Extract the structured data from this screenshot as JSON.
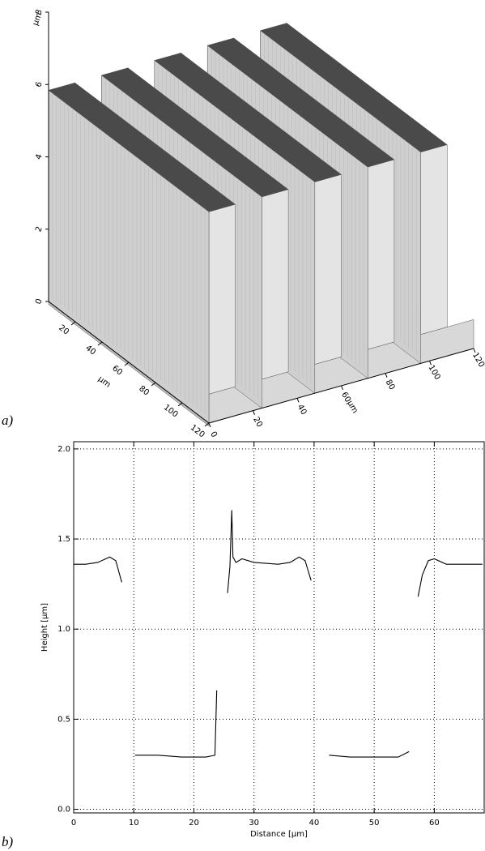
{
  "chart_data": [
    {
      "type": "surface3d",
      "panel_label": "a)",
      "zlabel": "μm",
      "xlabel": "μm",
      "ylabel": "μm",
      "zlim": [
        0,
        8
      ],
      "zticks": [
        0,
        2,
        4,
        6,
        8
      ],
      "ylim": [
        0,
        120
      ],
      "yticks": [
        20,
        40,
        60,
        80,
        100,
        120
      ],
      "xlim": [
        0,
        120
      ],
      "xticks": [
        0,
        20,
        40,
        60,
        80,
        100,
        120
      ]
    },
    {
      "type": "line",
      "panel_label": "b)",
      "xlabel": "Distance [μm]",
      "ylabel": "Height [μm]",
      "xlim": [
        0,
        68.3
      ],
      "ylim": [
        -0.02,
        2.04
      ],
      "xticks": [
        0,
        10,
        20,
        30,
        40,
        50,
        60
      ],
      "yticks": [
        {
          "value": 0,
          "label": "0.0"
        },
        {
          "value": 0.5,
          "label": "0.5"
        },
        {
          "value": 1,
          "label": "1.0"
        },
        {
          "value": 1.5,
          "label": "1.5"
        },
        {
          "value": 2,
          "label": "2.0"
        }
      ],
      "grid": true,
      "series": [
        {
          "color": "#000000",
          "x": [
            0,
            2,
            4,
            6,
            7,
            8,
            null,
            10.2,
            14,
            18,
            22,
            23.5,
            23.8,
            null,
            25.6,
            26,
            26.3,
            26.5,
            27,
            28,
            30,
            34,
            36,
            37.5,
            38.5,
            39.5,
            null,
            42.5,
            46,
            50,
            54,
            55.8,
            null,
            57.3,
            58,
            59,
            60,
            62,
            65,
            68
          ],
          "values": [
            1.36,
            1.36,
            1.37,
            1.4,
            1.38,
            1.26,
            null,
            0.3,
            0.3,
            0.29,
            0.29,
            0.3,
            0.66,
            null,
            1.2,
            1.35,
            1.66,
            1.4,
            1.37,
            1.39,
            1.37,
            1.36,
            1.37,
            1.4,
            1.38,
            1.27,
            null,
            0.3,
            0.29,
            0.29,
            0.29,
            0.32,
            null,
            1.18,
            1.3,
            1.38,
            1.39,
            1.36,
            1.36,
            1.36
          ]
        }
      ]
    }
  ]
}
